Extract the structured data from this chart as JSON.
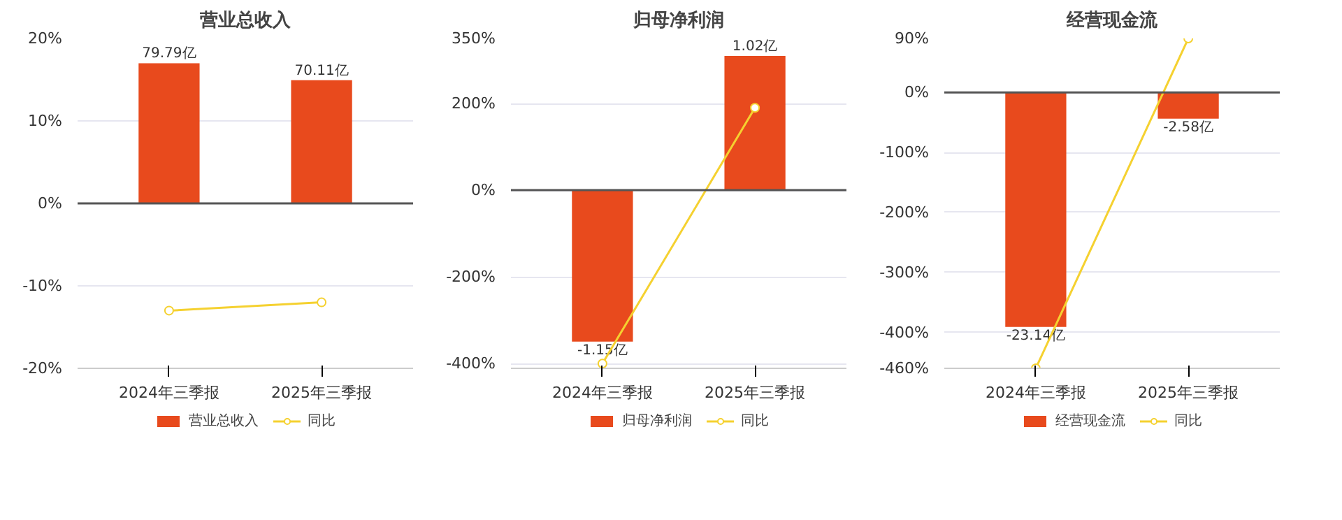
{
  "chart_data": [
    {
      "type": "bar",
      "title": "营业总收入",
      "categories": [
        "2024年三季报",
        "2025年三季报"
      ],
      "ylim": [
        -20,
        20
      ],
      "yticks": [
        {
          "value": -20,
          "label": "-20%"
        },
        {
          "value": -10,
          "label": "-10%"
        },
        {
          "value": 0,
          "label": "0%"
        },
        {
          "value": 10,
          "label": "10%"
        },
        {
          "value": 20,
          "label": "20%"
        }
      ],
      "grid": "y",
      "legend": "bottom",
      "ref_lines": [
        {
          "axis": "y",
          "value": 0,
          "color": "#555555"
        }
      ],
      "series": [
        {
          "name": "营业总收入",
          "axis": "y2",
          "color": "#e84a1d",
          "values": [
            79.79,
            70.11
          ],
          "value_labels": [
            "79.79亿",
            "70.11亿"
          ]
        },
        {
          "name": "同比",
          "type": "line",
          "color": "#f5d130",
          "marker": "circle",
          "values": [
            -13,
            -12
          ]
        }
      ]
    },
    {
      "type": "bar",
      "title": "归母净利润",
      "categories": [
        "2024年三季报",
        "2025年三季报"
      ],
      "ylim": [
        -411,
        350
      ],
      "yticks": [
        {
          "value": -400,
          "label": "-400%"
        },
        {
          "value": -200,
          "label": "-200%"
        },
        {
          "value": 0,
          "label": "0%"
        },
        {
          "value": 200,
          "label": "200%"
        },
        {
          "value": 350,
          "label": "350%"
        }
      ],
      "grid": "y",
      "legend": "bottom",
      "ref_lines": [
        {
          "axis": "y",
          "value": 0,
          "color": "#555555"
        }
      ],
      "series": [
        {
          "name": "归母净利润",
          "axis": "y2",
          "color": "#e84a1d",
          "values": [
            -1.15,
            1.02
          ],
          "value_labels": [
            "-1.15亿",
            "1.02亿"
          ]
        },
        {
          "name": "同比",
          "type": "line",
          "color": "#f5d130",
          "marker": "circle",
          "values": [
            -400,
            190
          ]
        }
      ]
    },
    {
      "type": "bar",
      "title": "经营现金流",
      "categories": [
        "2024年三季报",
        "2025年三季报"
      ],
      "ylim": [
        -460,
        90
      ],
      "yticks": [
        {
          "value": -460,
          "label": "-460%"
        },
        {
          "value": -400,
          "label": "-400%"
        },
        {
          "value": -300,
          "label": "-300%"
        },
        {
          "value": -200,
          "label": "-200%"
        },
        {
          "value": -100,
          "label": "-100%"
        },
        {
          "value": 0,
          "label": "0%"
        },
        {
          "value": 90,
          "label": "90%"
        }
      ],
      "grid": "y",
      "legend": "bottom",
      "ref_lines": [
        {
          "axis": "y",
          "value": 0,
          "color": "#555555"
        }
      ],
      "series": [
        {
          "name": "经营现金流",
          "axis": "y2",
          "color": "#e84a1d",
          "values": [
            -23.14,
            -2.58
          ],
          "value_labels": [
            "-23.14亿",
            "-2.58亿"
          ]
        },
        {
          "name": "同比",
          "type": "line",
          "color": "#f5d130",
          "marker": "circle",
          "values": [
            -460,
            90
          ]
        }
      ]
    }
  ]
}
